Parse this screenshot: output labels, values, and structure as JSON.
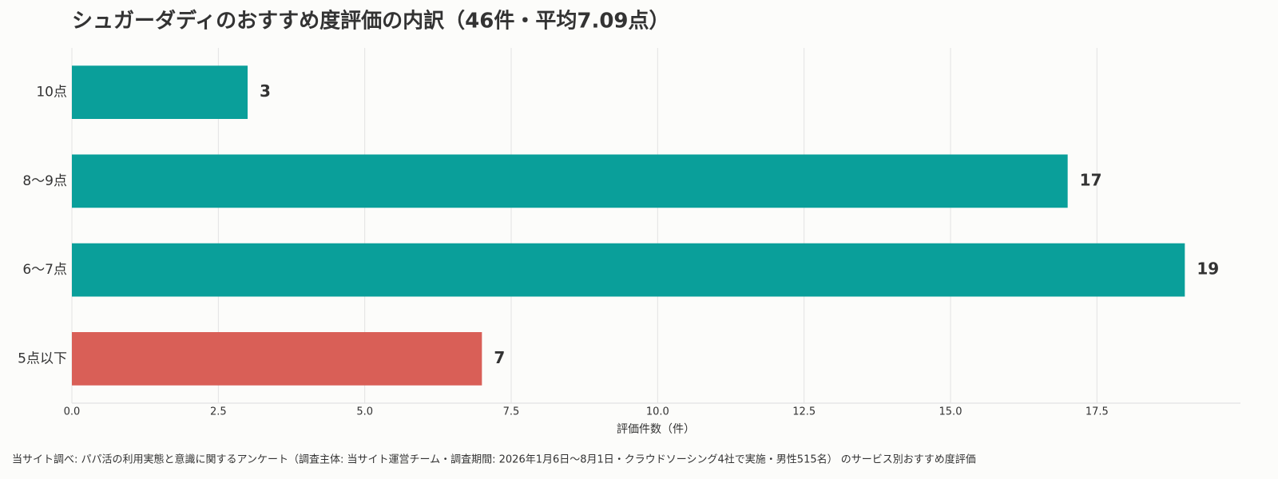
{
  "chart_data": {
    "type": "bar",
    "orientation": "horizontal",
    "title": "シュガーダディのおすすめ度評価の内訳（46件・平均7.09点）",
    "categories": [
      "10点",
      "8〜9点",
      "6〜7点",
      "5点以下"
    ],
    "values": [
      3,
      17,
      19,
      7
    ],
    "colors": [
      "#0a9f9a",
      "#0a9f9a",
      "#0a9f9a",
      "#d95f57"
    ],
    "xlabel": "評価件数（件）",
    "xlim": [
      0,
      19.95
    ],
    "xticks": [
      {
        "value": 0,
        "label": "0.0"
      },
      2.5,
      {
        "value": 5,
        "label": "5.0"
      },
      7.5,
      {
        "value": 10,
        "label": "10.0"
      },
      12.5,
      {
        "value": 15,
        "label": "15.0"
      },
      17.5
    ],
    "grid": true,
    "footnote": "当サイト調べ: パパ活の利用実態と意識に関するアンケート（調査主体: 当サイト運営チーム・調査期間: 2026年1月6日〜8月1日・クラウドソーシング4社で実施・男性515名） のサービス別おすすめ度評価"
  }
}
